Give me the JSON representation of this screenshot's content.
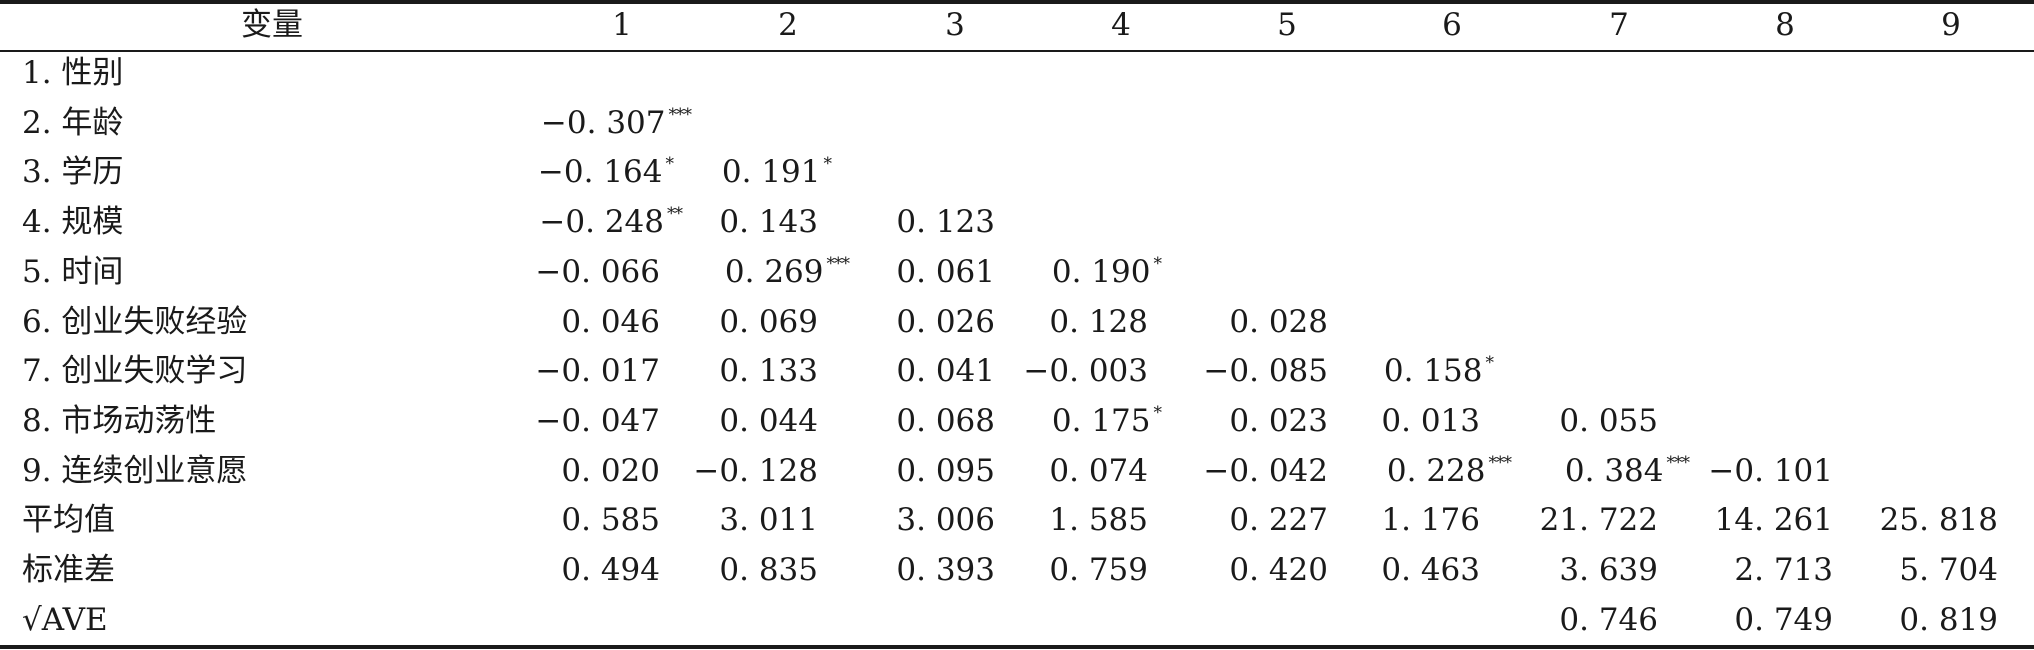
{
  "table": {
    "header": [
      "变量",
      "1",
      "2",
      "3",
      "4",
      "5",
      "6",
      "7",
      "8",
      "9"
    ],
    "rows": [
      {
        "label": "1. 性别",
        "cells": [
          "",
          "",
          "",
          "",
          "",
          "",
          "",
          "",
          ""
        ]
      },
      {
        "label": "2. 年龄",
        "cells": [
          {
            "v": "−0. 307",
            "s": "***"
          },
          "",
          "",
          "",
          "",
          "",
          "",
          "",
          ""
        ]
      },
      {
        "label": "3. 学历",
        "cells": [
          {
            "v": "−0. 164",
            "s": "*"
          },
          {
            "v": "0. 191",
            "s": "*"
          },
          "",
          "",
          "",
          "",
          "",
          "",
          ""
        ]
      },
      {
        "label": "4. 规模",
        "cells": [
          {
            "v": "−0. 248",
            "s": "**"
          },
          {
            "v": "0. 143"
          },
          {
            "v": "0. 123"
          },
          "",
          "",
          "",
          "",
          "",
          ""
        ]
      },
      {
        "label": "5. 时间",
        "cells": [
          {
            "v": "−0. 066"
          },
          {
            "v": "0. 269",
            "s": "***"
          },
          {
            "v": "0. 061"
          },
          {
            "v": "0. 190",
            "s": "*"
          },
          "",
          "",
          "",
          "",
          ""
        ]
      },
      {
        "label": "6. 创业失败经验",
        "cells": [
          {
            "v": "0. 046"
          },
          {
            "v": "0. 069"
          },
          {
            "v": "0. 026"
          },
          {
            "v": "0. 128"
          },
          {
            "v": "0. 028"
          },
          "",
          "",
          "",
          ""
        ]
      },
      {
        "label": "7. 创业失败学习",
        "cells": [
          {
            "v": "−0. 017"
          },
          {
            "v": "0. 133"
          },
          {
            "v": "0. 041"
          },
          {
            "v": "−0. 003"
          },
          {
            "v": "−0. 085"
          },
          {
            "v": "0. 158",
            "s": "*"
          },
          "",
          "",
          ""
        ]
      },
      {
        "label": "8. 市场动荡性",
        "cells": [
          {
            "v": "−0. 047"
          },
          {
            "v": "0. 044"
          },
          {
            "v": "0. 068"
          },
          {
            "v": "0. 175",
            "s": "*"
          },
          {
            "v": "0. 023"
          },
          {
            "v": "0. 013"
          },
          {
            "v": "0. 055"
          },
          "",
          ""
        ]
      },
      {
        "label": "9. 连续创业意愿",
        "cells": [
          {
            "v": "0. 020"
          },
          {
            "v": "−0. 128"
          },
          {
            "v": "0. 095"
          },
          {
            "v": "0. 074"
          },
          {
            "v": "−0. 042"
          },
          {
            "v": "0. 228",
            "s": "***"
          },
          {
            "v": "0. 384",
            "s": "***"
          },
          {
            "v": "−0. 101"
          },
          ""
        ]
      },
      {
        "label": "平均值",
        "cells": [
          {
            "v": "0. 585"
          },
          {
            "v": "3. 011"
          },
          {
            "v": "3. 006"
          },
          {
            "v": "1. 585"
          },
          {
            "v": "0. 227"
          },
          {
            "v": "1. 176"
          },
          {
            "v": "21. 722"
          },
          {
            "v": "14. 261"
          },
          {
            "v": "25. 818"
          }
        ]
      },
      {
        "label": "标准差",
        "cells": [
          {
            "v": "0. 494"
          },
          {
            "v": "0. 835"
          },
          {
            "v": "0. 393"
          },
          {
            "v": "0. 759"
          },
          {
            "v": "0. 420"
          },
          {
            "v": "0. 463"
          },
          {
            "v": "3. 639"
          },
          {
            "v": "2. 713"
          },
          {
            "v": "5. 704"
          }
        ]
      },
      {
        "label": "√AVE",
        "cells": [
          "",
          "",
          "",
          "",
          "",
          "",
          {
            "v": "0. 746"
          },
          {
            "v": "0. 749"
          },
          {
            "v": "0. 819"
          }
        ]
      }
    ]
  }
}
